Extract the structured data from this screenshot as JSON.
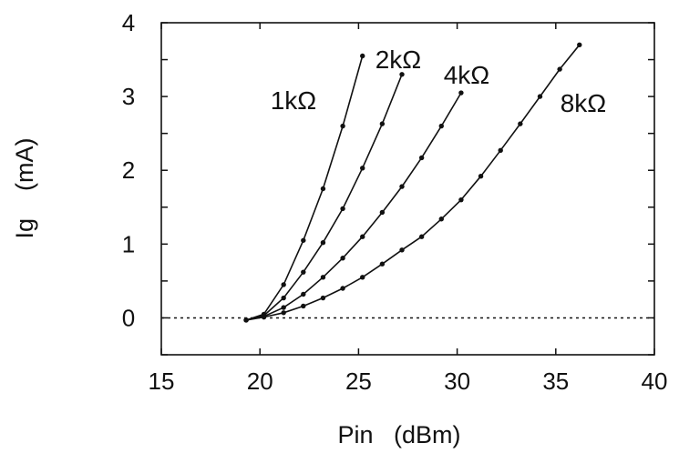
{
  "chart_data": {
    "type": "line",
    "title": "",
    "xlabel": "Pin   (dBm)",
    "ylabel": "Ig    (mA)",
    "xlim": [
      15,
      40
    ],
    "ylim": [
      -0.5,
      4
    ],
    "x_ticks": [
      15,
      20,
      25,
      30,
      35,
      40
    ],
    "y_ticks": [
      0,
      1,
      2,
      3,
      4
    ],
    "grid": false,
    "legend": "none",
    "reference_line": {
      "y": 0,
      "style": "dotted"
    },
    "line_color": "#111111",
    "series": [
      {
        "name": "1kΩ",
        "x": [
          19.3,
          20.2,
          21.2,
          22.2,
          23.2,
          24.2,
          25.2
        ],
        "y": [
          -0.03,
          0.05,
          0.45,
          1.05,
          1.75,
          2.6,
          3.55
        ]
      },
      {
        "name": "2kΩ",
        "x": [
          19.3,
          20.2,
          21.2,
          22.2,
          23.2,
          24.2,
          25.2,
          26.2,
          27.2
        ],
        "y": [
          -0.03,
          0.03,
          0.27,
          0.62,
          1.02,
          1.48,
          2.03,
          2.63,
          3.3
        ]
      },
      {
        "name": "4kΩ",
        "x": [
          19.3,
          20.2,
          21.2,
          22.2,
          23.2,
          24.2,
          25.2,
          26.2,
          27.2,
          28.2,
          29.2,
          30.2
        ],
        "y": [
          -0.03,
          0.02,
          0.14,
          0.32,
          0.55,
          0.81,
          1.1,
          1.43,
          1.78,
          2.17,
          2.6,
          3.05
        ]
      },
      {
        "name": "8kΩ",
        "x": [
          19.3,
          20.2,
          21.2,
          22.2,
          23.2,
          24.2,
          25.2,
          26.2,
          27.2,
          28.2,
          29.2,
          30.2,
          31.2,
          32.2,
          33.2,
          34.2,
          35.2,
          36.2
        ],
        "y": [
          -0.03,
          0.01,
          0.07,
          0.16,
          0.27,
          0.4,
          0.55,
          0.73,
          0.92,
          1.1,
          1.34,
          1.6,
          1.92,
          2.27,
          2.63,
          3.0,
          3.37,
          3.7
        ]
      }
    ]
  }
}
